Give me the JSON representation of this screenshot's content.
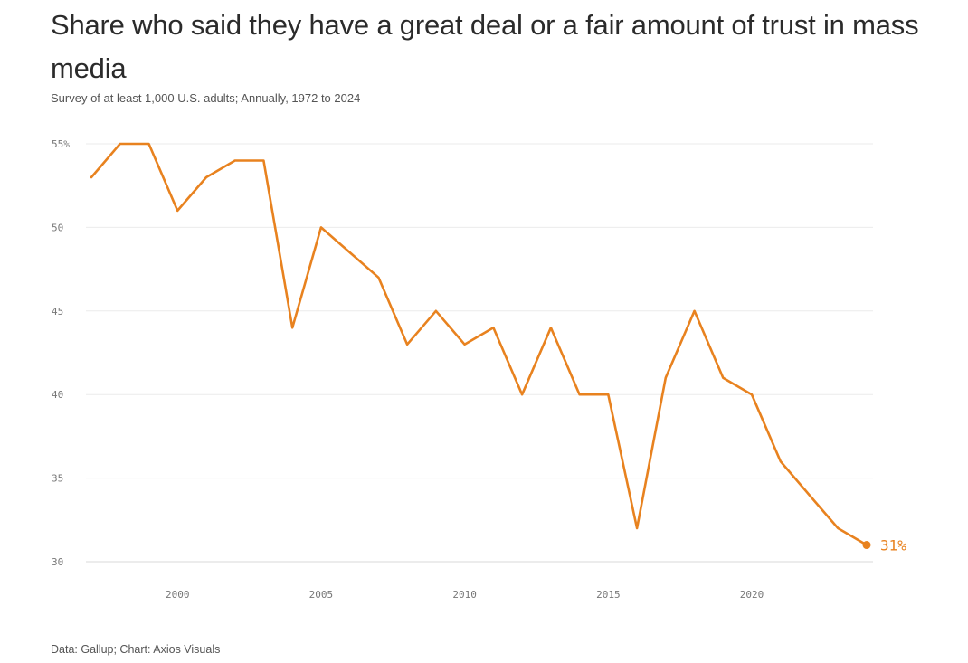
{
  "chart_data": {
    "type": "line",
    "title": "Share who said they have a great deal or a fair amount of trust in mass media",
    "subtitle": "Survey of at least 1,000 U.S. adults; Annually, 1972 to 2024",
    "source": "Data: Gallup; Chart: Axios Visuals",
    "xlabel": "",
    "ylabel": "",
    "xlim": [
      1997,
      2024
    ],
    "ylim": [
      30,
      55
    ],
    "grid": true,
    "color": "#e8821f",
    "y_ticks": [
      {
        "value": 55,
        "label": "55%"
      },
      {
        "value": 50,
        "label": "50"
      },
      {
        "value": 45,
        "label": "45"
      },
      {
        "value": 40,
        "label": "40"
      },
      {
        "value": 35,
        "label": "35"
      },
      {
        "value": 30,
        "label": "30"
      }
    ],
    "x_ticks": [
      {
        "value": 2000,
        "label": "2000"
      },
      {
        "value": 2005,
        "label": "2005"
      },
      {
        "value": 2010,
        "label": "2010"
      },
      {
        "value": 2015,
        "label": "2015"
      },
      {
        "value": 2020,
        "label": "2020"
      }
    ],
    "series": [
      {
        "name": "Trust in mass media",
        "x": [
          1997,
          1998,
          1999,
          2000,
          2001,
          2002,
          2003,
          2004,
          2005,
          2006,
          2007,
          2008,
          2009,
          2010,
          2011,
          2012,
          2013,
          2014,
          2015,
          2016,
          2017,
          2018,
          2019,
          2020,
          2021,
          2022,
          2023,
          2024
        ],
        "values": [
          53,
          55,
          55,
          51,
          53,
          54,
          54,
          44,
          50,
          48.5,
          47,
          43,
          45,
          43,
          44,
          40,
          44,
          40,
          40,
          32,
          41,
          45,
          41,
          40,
          36,
          34,
          32,
          31
        ]
      }
    ],
    "end_label": "31%"
  }
}
